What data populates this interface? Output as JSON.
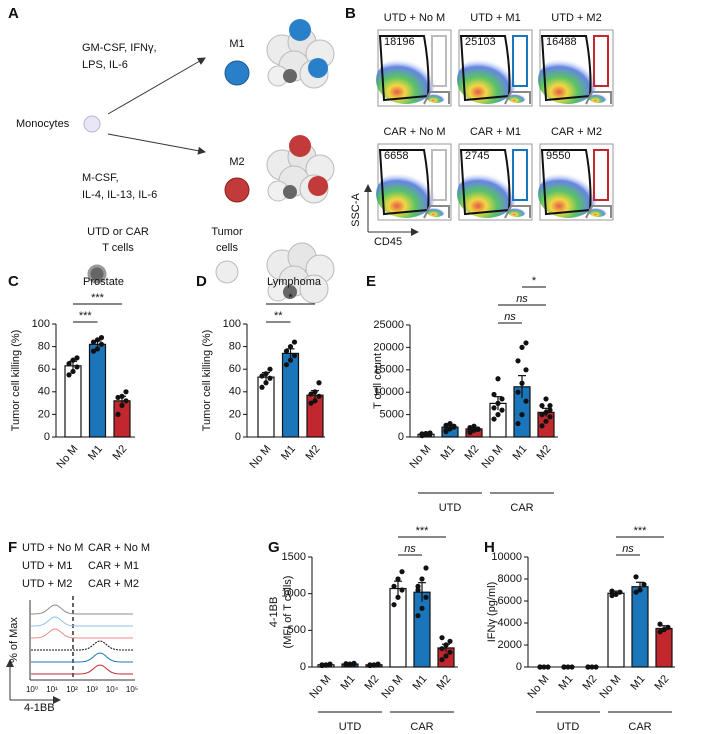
{
  "panel_labels": [
    "A",
    "B",
    "C",
    "D",
    "E",
    "F",
    "G",
    "H"
  ],
  "panel_a": {
    "m1": "M1",
    "m2": "M2",
    "m1_recipe": [
      "GM-CSF, IFNγ,",
      "LPS, IL-6"
    ],
    "monocytes": "Monocytes",
    "m2_recipe": [
      "M-CSF,",
      "IL-4, IL-13, IL-6"
    ],
    "t_cells": [
      "UTD or CAR",
      "T cells"
    ],
    "tumor": [
      "Tumor",
      "cells"
    ]
  },
  "panel_b": {
    "titles": [
      "UTD + No M",
      "UTD + M1",
      "UTD + M2",
      "CAR + No M",
      "CAR + M1",
      "CAR + M2"
    ],
    "counts": [
      18196,
      25103,
      16488,
      6658,
      2745,
      9550
    ],
    "y_label": "SSC-A",
    "x_label": "CD45"
  },
  "panel_f": {
    "legend": [
      "UTD + No M",
      "CAR + No M",
      "UTD + M1",
      "CAR + M1",
      "UTD + M2",
      "CAR + M2"
    ],
    "legend_colors": [
      "#8c8c8c",
      "#111111",
      "#8fc3ea",
      "#1b75bb",
      "#f08a8a",
      "#c1272d"
    ],
    "y_label": "% of Max",
    "x_label": "4-1BB",
    "xticks": [
      "10⁰",
      "10¹",
      "10²",
      "10³",
      "10⁴",
      "10⁵"
    ]
  },
  "chart_data": [
    {
      "type": "bar",
      "title": "Prostate",
      "y_label": [
        "Tumor cell killing (%)"
      ],
      "categories": [
        "No M",
        "M1",
        "M2"
      ],
      "colors": [
        "#ffffff",
        "#1b75bb",
        "#c1272d"
      ],
      "values": [
        63,
        82,
        32
      ],
      "errors": [
        4,
        3,
        4
      ],
      "points": [
        [
          55,
          58,
          62,
          65,
          68,
          70
        ],
        [
          76,
          78,
          82,
          84,
          86,
          88
        ],
        [
          20,
          28,
          32,
          35,
          36,
          40
        ]
      ],
      "ylim": [
        0,
        100
      ],
      "yticks": [
        0,
        20,
        40,
        60,
        80,
        100
      ],
      "brackets": [
        {
          "from": 0,
          "to": 1,
          "label": "***"
        },
        {
          "from": 0,
          "to": 2,
          "label": "***"
        }
      ]
    },
    {
      "type": "bar",
      "title": "Lymphoma",
      "y_label": [
        "Tumor cell killing (%)"
      ],
      "categories": [
        "No M",
        "M1",
        "M2"
      ],
      "colors": [
        "#ffffff",
        "#1b75bb",
        "#c1272d"
      ],
      "values": [
        53,
        74,
        37
      ],
      "errors": [
        4,
        4,
        4
      ],
      "points": [
        [
          44,
          48,
          52,
          54,
          56,
          60
        ],
        [
          64,
          68,
          72,
          76,
          80,
          84
        ],
        [
          30,
          32,
          36,
          38,
          40,
          48
        ]
      ],
      "ylim": [
        0,
        100
      ],
      "yticks": [
        0,
        20,
        40,
        60,
        80,
        100
      ],
      "brackets": [
        {
          "from": 0,
          "to": 1,
          "label": "**"
        },
        {
          "from": 0,
          "to": 2,
          "label": "*"
        }
      ]
    },
    {
      "type": "bar",
      "y_label": [
        "T cell count"
      ],
      "categories": [
        "No M",
        "M1",
        "M2",
        "No M",
        "M1",
        "M2"
      ],
      "groups": [
        "UTD",
        "CAR"
      ],
      "colors": [
        "#ffffff",
        "#1b75bb",
        "#c1272d",
        "#ffffff",
        "#1b75bb",
        "#c1272d"
      ],
      "values": [
        600,
        2200,
        1800,
        7500,
        11200,
        5500
      ],
      "errors": [
        150,
        400,
        300,
        1500,
        2500,
        900
      ],
      "points": [
        [
          300,
          500,
          600,
          700,
          800,
          900,
          400,
          700
        ],
        [
          1200,
          1800,
          2200,
          2600,
          3000,
          2400,
          1500,
          2900
        ],
        [
          1000,
          1500,
          1800,
          2100,
          2400,
          1700,
          1300,
          2200
        ],
        [
          4000,
          5000,
          6000,
          6500,
          7500,
          8500,
          9500,
          13000
        ],
        [
          3000,
          5000,
          8000,
          10000,
          12000,
          15000,
          17000,
          20000,
          21000
        ],
        [
          2500,
          3500,
          4500,
          5000,
          5500,
          6000,
          7000,
          8500,
          7000
        ]
      ],
      "ylim": [
        0,
        25000
      ],
      "yticks": [
        0,
        5000,
        10000,
        15000,
        20000,
        25000
      ],
      "brackets": [
        {
          "from": 3,
          "to": 4,
          "label": "ns"
        },
        {
          "from": 3,
          "to": 5,
          "label": "ns"
        },
        {
          "from": 4,
          "to": 5,
          "label": "*"
        }
      ]
    },
    {
      "type": "bar",
      "y_label": [
        "4-1BB",
        "(MFI of T cells)"
      ],
      "categories": [
        "No M",
        "M1",
        "M2",
        "No M",
        "M1",
        "M2"
      ],
      "groups": [
        "UTD",
        "CAR"
      ],
      "colors": [
        "#ffffff",
        "#1b75bb",
        "#c1272d",
        "#ffffff",
        "#1b75bb",
        "#c1272d"
      ],
      "values": [
        30,
        40,
        30,
        1070,
        1020,
        260
      ],
      "errors": [
        5,
        5,
        5,
        100,
        130,
        50
      ],
      "points": [
        [
          20,
          30,
          40,
          30,
          25,
          35
        ],
        [
          30,
          40,
          50,
          45,
          35,
          40
        ],
        [
          20,
          30,
          35,
          30,
          25,
          40
        ],
        [
          850,
          950,
          1050,
          1100,
          1200,
          1300
        ],
        [
          700,
          800,
          950,
          1100,
          1200,
          1350,
          1050
        ],
        [
          100,
          150,
          200,
          250,
          300,
          350,
          400,
          300
        ]
      ],
      "ylim": [
        0,
        1500
      ],
      "yticks": [
        0,
        500,
        1000,
        1500
      ],
      "brackets": [
        {
          "from": 3,
          "to": 4,
          "label": "ns"
        },
        {
          "from": 3,
          "to": 5,
          "label": "***"
        }
      ]
    },
    {
      "type": "bar",
      "y_label": [
        "IFNγ (pg/ml)"
      ],
      "categories": [
        "No M",
        "M1",
        "M2",
        "No M",
        "M1",
        "M2"
      ],
      "groups": [
        "UTD",
        "CAR"
      ],
      "colors": [
        "#ffffff",
        "#1b75bb",
        "#c1272d",
        "#ffffff",
        "#1b75bb",
        "#c1272d"
      ],
      "values": [
        0,
        0,
        0,
        6700,
        7300,
        3500
      ],
      "errors": [
        0,
        0,
        0,
        200,
        400,
        250
      ],
      "points": [
        [
          0,
          0,
          0,
          0
        ],
        [
          0,
          0,
          0,
          0
        ],
        [
          0,
          0,
          0,
          0
        ],
        [
          6500,
          6600,
          6800,
          6900
        ],
        [
          6800,
          7000,
          7500,
          8200
        ],
        [
          3200,
          3400,
          3600,
          3900
        ]
      ],
      "ylim": [
        0,
        10000
      ],
      "yticks": [
        0,
        2000,
        4000,
        6000,
        8000,
        10000
      ],
      "brackets": [
        {
          "from": 3,
          "to": 4,
          "label": "ns"
        },
        {
          "from": 3,
          "to": 5,
          "label": "***"
        }
      ]
    }
  ]
}
